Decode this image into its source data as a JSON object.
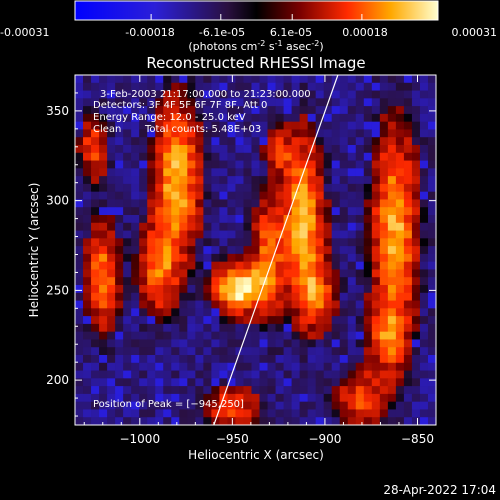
{
  "colorbar": {
    "ticks": [
      "-0.00031",
      "-0.00018",
      "-6.1e-05",
      "6.1e-05",
      "0.00018",
      "0.00031"
    ],
    "tick_values": [
      -0.00031,
      -0.00018,
      -6.1e-05,
      6.1e-05,
      0.00018,
      0.00031
    ],
    "range": [
      -0.00031,
      0.00031
    ],
    "unit_prefix": "(photons cm",
    "unit_mid": " s",
    "unit_mid2": " asec",
    "unit_suffix": ")",
    "sup1": "-2",
    "sup2": "-1",
    "sup3": "-2"
  },
  "chart_data": {
    "type": "heatmap",
    "title": "Reconstructed RHESSI Image",
    "xlabel": "Heliocentric X (arcsec)",
    "ylabel": "Heliocentric Y (arcsec)",
    "xlim": [
      -1035,
      -840
    ],
    "ylim": [
      175,
      370
    ],
    "xticks": [
      -1000,
      -950,
      -900,
      -850
    ],
    "xtick_labels": [
      "−1000",
      "−950",
      "−900",
      "−850"
    ],
    "yticks": [
      200,
      250,
      300,
      350
    ],
    "ytick_labels": [
      "200",
      "250",
      "300",
      "350"
    ],
    "annotations": {
      "time": "3-Feb-2003 21:17:00.000 to 21:23:00.000",
      "detectors": "Detectors: 3F 4F 5F 6F 7F 8F, Att 0",
      "energy": "Energy Range: 12.0 - 25.0 keV",
      "clean": "Clean",
      "counts": "Total counts: 5.48E+03",
      "peak": "Position of Peak = [−945,250]"
    },
    "peak": [
      -945,
      250
    ],
    "limb_line": [
      [
        -960,
        175
      ],
      [
        -893,
        370
      ]
    ],
    "sources": [
      {
        "x": -946,
        "y": 251,
        "sx": 9,
        "sy": 9,
        "amp": 1.0
      },
      {
        "x": -930,
        "y": 270,
        "sx": 6,
        "sy": 22,
        "amp": 0.55
      },
      {
        "x": -912,
        "y": 292,
        "sx": 7,
        "sy": 28,
        "amp": 0.8
      },
      {
        "x": -905,
        "y": 248,
        "sx": 7,
        "sy": 14,
        "amp": 0.55
      },
      {
        "x": -980,
        "y": 312,
        "sx": 8,
        "sy": 28,
        "amp": 0.8
      },
      {
        "x": -990,
        "y": 262,
        "sx": 7,
        "sy": 16,
        "amp": 0.6
      },
      {
        "x": -1020,
        "y": 258,
        "sx": 6,
        "sy": 20,
        "amp": 0.6
      },
      {
        "x": -1025,
        "y": 330,
        "sx": 5,
        "sy": 12,
        "amp": 0.45
      },
      {
        "x": -862,
        "y": 285,
        "sx": 8,
        "sy": 35,
        "amp": 0.75
      },
      {
        "x": -866,
        "y": 225,
        "sx": 7,
        "sy": 14,
        "amp": 0.55
      },
      {
        "x": -880,
        "y": 190,
        "sx": 9,
        "sy": 10,
        "amp": 0.5
      },
      {
        "x": -950,
        "y": 185,
        "sx": 10,
        "sy": 8,
        "amp": 0.45
      },
      {
        "x": -925,
        "y": 328,
        "sx": 5,
        "sy": 8,
        "amp": 0.4
      }
    ]
  },
  "timestamp": "28-Apr-2022 17:04"
}
